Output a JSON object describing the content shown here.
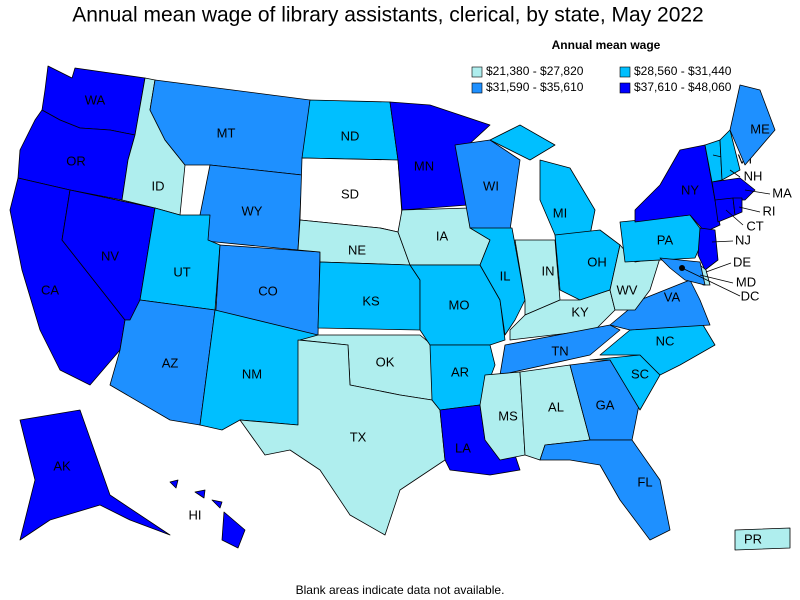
{
  "title": "Annual mean wage of library assistants, clerical, by state, May 2022",
  "legend": {
    "title": "Annual mean wage",
    "items": [
      {
        "label": "$21,380 - $27,820",
        "color": "#afeeee"
      },
      {
        "label": "$28,560 - $31,440",
        "color": "#00bfff"
      },
      {
        "label": "$31,590 - $35,610",
        "color": "#1e90ff"
      },
      {
        "label": "$37,610 - $48,060",
        "color": "#0000ff"
      }
    ]
  },
  "states": [
    {
      "label": "WA",
      "color": "#0000ff"
    },
    {
      "label": "OR",
      "color": "#0000ff"
    },
    {
      "label": "CA",
      "color": "#0000ff"
    },
    {
      "label": "NV",
      "color": "#0000ff"
    },
    {
      "label": "ID",
      "color": "#afeeee"
    },
    {
      "label": "MT",
      "color": "#1e90ff"
    },
    {
      "label": "WY",
      "color": "#1e90ff"
    },
    {
      "label": "UT",
      "color": "#00bfff"
    },
    {
      "label": "CO",
      "color": "#1e90ff"
    },
    {
      "label": "AZ",
      "color": "#1e90ff"
    },
    {
      "label": "NM",
      "color": "#00bfff"
    },
    {
      "label": "ND",
      "color": "#00bfff"
    },
    {
      "label": "SD",
      "color": "#ffffff"
    },
    {
      "label": "NE",
      "color": "#afeeee"
    },
    {
      "label": "KS",
      "color": "#00bfff"
    },
    {
      "label": "OK",
      "color": "#afeeee"
    },
    {
      "label": "TX",
      "color": "#afeeee"
    },
    {
      "label": "MN",
      "color": "#0000ff"
    },
    {
      "label": "IA",
      "color": "#afeeee"
    },
    {
      "label": "MO",
      "color": "#00bfff"
    },
    {
      "label": "AR",
      "color": "#00bfff"
    },
    {
      "label": "LA",
      "color": "#0000ff"
    },
    {
      "label": "WI",
      "color": "#1e90ff"
    },
    {
      "label": "IL",
      "color": "#00bfff"
    },
    {
      "label": "MI",
      "color": "#00bfff"
    },
    {
      "label": "IN",
      "color": "#afeeee"
    },
    {
      "label": "OH",
      "color": "#00bfff"
    },
    {
      "label": "KY",
      "color": "#afeeee"
    },
    {
      "label": "TN",
      "color": "#1e90ff"
    },
    {
      "label": "MS",
      "color": "#afeeee"
    },
    {
      "label": "AL",
      "color": "#afeeee"
    },
    {
      "label": "GA",
      "color": "#1e90ff"
    },
    {
      "label": "FL",
      "color": "#1e90ff"
    },
    {
      "label": "SC",
      "color": "#00bfff"
    },
    {
      "label": "NC",
      "color": "#00bfff"
    },
    {
      "label": "VA",
      "color": "#1e90ff"
    },
    {
      "label": "WV",
      "color": "#afeeee"
    },
    {
      "label": "PA",
      "color": "#00bfff"
    },
    {
      "label": "NY",
      "color": "#0000ff"
    },
    {
      "label": "NJ",
      "color": "#0000ff"
    },
    {
      "label": "DE",
      "color": "#afeeee"
    },
    {
      "label": "MD",
      "color": "#1e90ff"
    },
    {
      "label": "VT",
      "color": "#00bfff"
    },
    {
      "label": "NH",
      "color": "#00bfff"
    },
    {
      "label": "ME",
      "color": "#1e90ff"
    },
    {
      "label": "MA",
      "color": "#0000ff"
    },
    {
      "label": "CT",
      "color": "#0000ff"
    },
    {
      "label": "RI",
      "color": "#0000ff"
    },
    {
      "label": "AK",
      "color": "#0000ff"
    },
    {
      "label": "HI",
      "color": "#0000ff"
    },
    {
      "label": "PR",
      "color": "#afeeee"
    },
    {
      "label": "DC",
      "color": "#000000"
    }
  ],
  "note": "Blank areas indicate data not available."
}
